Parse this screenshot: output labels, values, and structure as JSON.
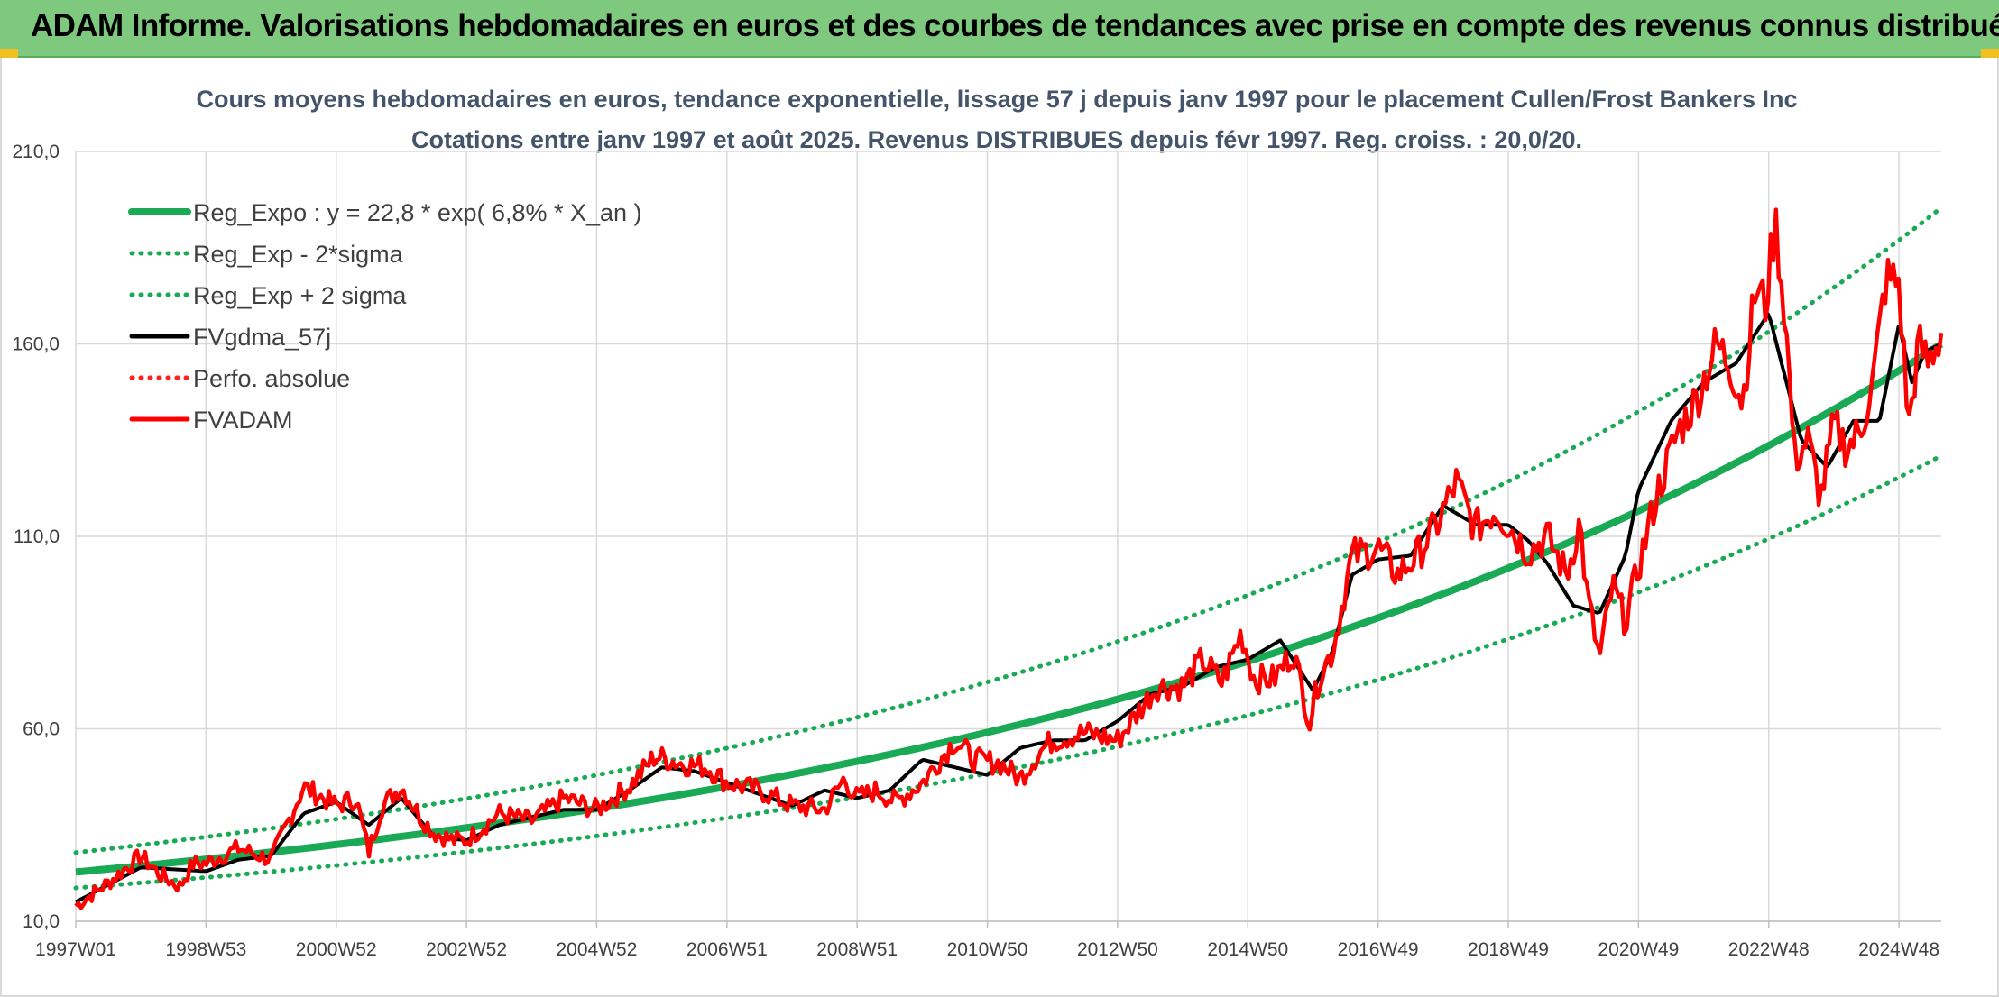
{
  "header": {
    "title": "ADAM Informe. Valorisations hebdomadaires en euros et des courbes de tendances avec prise en compte des revenus connus distribués"
  },
  "chart_data": {
    "type": "line",
    "title": "Cours moyens hebdomadaires en euros, tendance exponentielle, lissage 57 j depuis janv 1997 pour le placement Cullen/Frost Bankers Inc",
    "subtitle": "Cotations entre janv 1997 et août 2025. Revenus DISTRIBUES depuis févr 1997. Reg. croiss. : 20,0/20.",
    "xlabel": "",
    "ylabel": "",
    "x_range": [
      1997.0,
      2025.65
    ],
    "ylim": [
      10,
      210
    ],
    "y_ticks": [
      "10,0",
      "60,0",
      "110,0",
      "160,0",
      "210,0"
    ],
    "x_ticks": [
      {
        "label": "1997W01",
        "x": 1997.0
      },
      {
        "label": "1998W53",
        "x": 1999.0
      },
      {
        "label": "2000W52",
        "x": 2001.0
      },
      {
        "label": "2002W52",
        "x": 2003.0
      },
      {
        "label": "2004W52",
        "x": 2005.0
      },
      {
        "label": "2006W51",
        "x": 2007.0
      },
      {
        "label": "2008W51",
        "x": 2009.0
      },
      {
        "label": "2010W50",
        "x": 2011.0
      },
      {
        "label": "2012W50",
        "x": 2013.0
      },
      {
        "label": "2014W50",
        "x": 2015.0
      },
      {
        "label": "2016W49",
        "x": 2017.0
      },
      {
        "label": "2018W49",
        "x": 2019.0
      },
      {
        "label": "2020W49",
        "x": 2021.0
      },
      {
        "label": "2022W48",
        "x": 2023.0
      },
      {
        "label": "2024W48",
        "x": 2025.0
      }
    ],
    "grid": true,
    "legend_position": "top-left",
    "regression": {
      "a": 22.8,
      "rate": 0.068,
      "sigma_log": 0.1
    },
    "series": [
      {
        "name": "Reg_Expo : y = 22,8 * exp( 6,8% *  X_an )",
        "color": "#1aaa55",
        "style": "solid",
        "kind": "trend"
      },
      {
        "name": "Reg_Exp - 2*sigma",
        "color": "#1aaa55",
        "style": "dotted",
        "kind": "lower"
      },
      {
        "name": "Reg_Exp + 2 sigma",
        "color": "#1aaa55",
        "style": "dotted",
        "kind": "upper"
      },
      {
        "name": "FVgdma_57j",
        "color": "#000000",
        "style": "solid",
        "kind": "smooth",
        "x": [
          1997.0,
          1998.0,
          1999.0,
          1999.5,
          2000.0,
          2000.5,
          2001.0,
          2001.5,
          2002.0,
          2002.5,
          2003.0,
          2003.5,
          2004.0,
          2004.5,
          2005.0,
          2005.5,
          2006.0,
          2006.5,
          2007.0,
          2007.5,
          2008.0,
          2008.5,
          2009.0,
          2009.5,
          2010.0,
          2010.5,
          2011.0,
          2011.5,
          2012.0,
          2012.5,
          2013.0,
          2013.5,
          2014.0,
          2014.5,
          2015.0,
          2015.5,
          2016.0,
          2016.3,
          2016.6,
          2017.0,
          2017.5,
          2018.0,
          2018.5,
          2019.0,
          2019.3,
          2019.6,
          2020.0,
          2020.4,
          2020.8,
          2021.0,
          2021.5,
          2022.0,
          2022.5,
          2023.0,
          2023.5,
          2023.9,
          2024.3,
          2024.7,
          2025.0,
          2025.2,
          2025.4,
          2025.65
        ],
        "values": [
          15,
          24,
          23,
          26,
          27,
          38,
          41,
          35,
          42,
          32,
          31,
          35,
          37,
          39,
          39,
          44,
          50,
          49,
          46,
          43,
          40,
          44,
          42,
          44,
          52,
          50,
          48,
          55,
          57,
          57,
          62,
          69,
          71,
          76,
          78,
          83,
          70,
          80,
          100,
          104,
          105,
          118,
          113,
          113,
          109,
          103,
          92,
          90,
          105,
          122,
          140,
          150,
          155,
          168,
          135,
          128,
          140,
          140,
          165,
          150,
          158,
          160
        ]
      },
      {
        "name": "Perfo. absolue",
        "color": "#ff2020",
        "style": "dotted",
        "kind": "perfo"
      },
      {
        "name": "FVADAM",
        "color": "#ff0000",
        "style": "solid",
        "kind": "price",
        "x": [
          1997.0,
          1997.5,
          1998.0,
          1998.3,
          1998.6,
          1998.8,
          1999.0,
          1999.5,
          2000.0,
          2000.5,
          2000.8,
          2001.0,
          2001.3,
          2001.5,
          2001.7,
          2002.0,
          2002.3,
          2002.5,
          2002.8,
          2003.0,
          2003.5,
          2004.0,
          2004.5,
          2005.0,
          2005.5,
          2005.9,
          2006.3,
          2006.7,
          2007.0,
          2007.5,
          2008.0,
          2008.5,
          2008.8,
          2009.0,
          2009.3,
          2009.6,
          2010.0,
          2010.5,
          2010.8,
          2011.2,
          2011.5,
          2011.8,
          2012.0,
          2012.5,
          2013.0,
          2013.3,
          2013.6,
          2014.0,
          2014.3,
          2014.6,
          2014.9,
          2015.1,
          2015.4,
          2015.7,
          2015.95,
          2016.1,
          2016.3,
          2016.6,
          2017.0,
          2017.3,
          2017.6,
          2017.9,
          2018.2,
          2018.5,
          2018.8,
          2019.0,
          2019.3,
          2019.6,
          2019.9,
          2020.1,
          2020.2,
          2020.4,
          2020.6,
          2020.8,
          2021.0,
          2021.3,
          2021.6,
          2021.9,
          2022.2,
          2022.4,
          2022.6,
          2022.8,
          2022.95,
          2023.1,
          2023.25,
          2023.4,
          2023.6,
          2023.8,
          2024.0,
          2024.2,
          2024.4,
          2024.6,
          2024.8,
          2025.0,
          2025.15,
          2025.3,
          2025.45,
          2025.65
        ],
        "values": [
          14,
          20,
          27,
          22,
          19,
          25,
          25,
          29,
          26,
          45,
          42,
          40,
          42,
          28,
          40,
          45,
          37,
          33,
          31,
          31,
          38,
          36,
          42,
          39,
          45,
          53,
          51,
          50,
          46,
          44,
          40,
          39,
          47,
          42,
          44,
          41,
          46,
          57,
          52,
          51,
          47,
          54,
          57,
          59,
          57,
          64,
          71,
          71,
          78,
          72,
          85,
          73,
          73,
          80,
          62,
          74,
          80,
          105,
          107,
          100,
          105,
          113,
          124,
          112,
          117,
          113,
          106,
          110,
          100,
          114,
          96,
          78,
          97,
          88,
          102,
          122,
          137,
          146,
          160,
          155,
          145,
          175,
          170,
          192,
          168,
          130,
          135,
          120,
          139,
          133,
          137,
          150,
          177,
          176,
          138,
          160,
          155,
          163
        ]
      }
    ]
  }
}
